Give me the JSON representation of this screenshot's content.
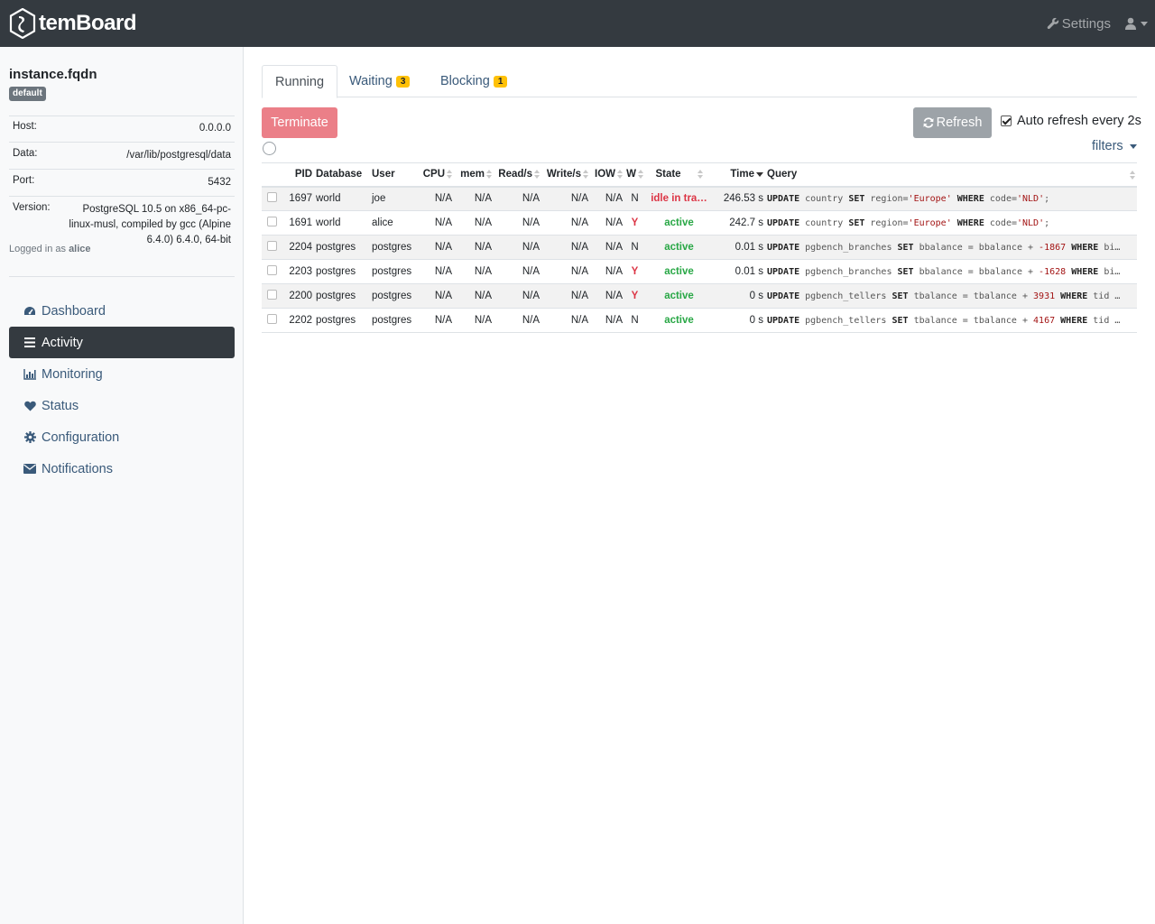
{
  "brand": {
    "name": "temBoard"
  },
  "navbar": {
    "settings_label": "Settings"
  },
  "instance": {
    "name": "instance.fqdn",
    "environment": "default",
    "info": [
      {
        "key": "Host:",
        "value": "0.0.0.0"
      },
      {
        "key": "Data:",
        "value": "/var/lib/postgresql/data"
      },
      {
        "key": "Port:",
        "value": "5432"
      },
      {
        "key": "Version:",
        "value": "PostgreSQL 10.5 on x86_64-pc-linux-musl, compiled by gcc (Alpine 6.4.0) 6.4.0, 64-bit"
      }
    ],
    "logged_prefix": "Logged in as",
    "logged_user": "alice"
  },
  "sidebar": {
    "items": [
      {
        "label": "Dashboard",
        "icon": "dashboard-icon"
      },
      {
        "label": "Activity",
        "icon": "list-icon",
        "active": true
      },
      {
        "label": "Monitoring",
        "icon": "bar-chart-icon"
      },
      {
        "label": "Status",
        "icon": "heart-icon"
      },
      {
        "label": "Configuration",
        "icon": "gear-icon"
      },
      {
        "label": "Notifications",
        "icon": "envelope-icon"
      }
    ]
  },
  "tabs": [
    {
      "label": "Running",
      "active": true
    },
    {
      "label": "Waiting",
      "count": "3"
    },
    {
      "label": "Blocking",
      "count": "1"
    }
  ],
  "toolbar": {
    "terminate_label": "Terminate",
    "refresh_label": "Refresh",
    "auto_refresh_label": "Auto refresh every 2s",
    "auto_refresh_checked": true,
    "filters_label": "filters"
  },
  "table": {
    "columns": [
      "PID",
      "Database",
      "User",
      "CPU",
      "mem",
      "Read/s",
      "Write/s",
      "IOW",
      "W",
      "State",
      "Time",
      "Query"
    ],
    "rows": [
      {
        "pid": "1697",
        "database": "world",
        "user": "joe",
        "cpu": "N/A",
        "mem": "N/A",
        "read": "N/A",
        "write": "N/A",
        "iow": "N/A",
        "w": "N",
        "state": "idle in tra…",
        "time": "246.53 s",
        "query": "UPDATE country SET region='Europe' WHERE code='NLD';"
      },
      {
        "pid": "1691",
        "database": "world",
        "user": "alice",
        "cpu": "N/A",
        "mem": "N/A",
        "read": "N/A",
        "write": "N/A",
        "iow": "N/A",
        "w": "Y",
        "state": "active",
        "time": "242.7 s",
        "query": "UPDATE country SET region='Europe' WHERE code='NLD';"
      },
      {
        "pid": "2204",
        "database": "postgres",
        "user": "postgres",
        "cpu": "N/A",
        "mem": "N/A",
        "read": "N/A",
        "write": "N/A",
        "iow": "N/A",
        "w": "N",
        "state": "active",
        "time": "0.01 s",
        "query": "UPDATE pgbench_branches SET bbalance = bbalance + -1867 WHERE bi…"
      },
      {
        "pid": "2203",
        "database": "postgres",
        "user": "postgres",
        "cpu": "N/A",
        "mem": "N/A",
        "read": "N/A",
        "write": "N/A",
        "iow": "N/A",
        "w": "Y",
        "state": "active",
        "time": "0.01 s",
        "query": "UPDATE pgbench_branches SET bbalance = bbalance + -1628 WHERE bi…"
      },
      {
        "pid": "2200",
        "database": "postgres",
        "user": "postgres",
        "cpu": "N/A",
        "mem": "N/A",
        "read": "N/A",
        "write": "N/A",
        "iow": "N/A",
        "w": "Y",
        "state": "active",
        "time": "0 s",
        "query": "UPDATE pgbench_tellers SET tbalance = tbalance + 3931 WHERE tid …"
      },
      {
        "pid": "2202",
        "database": "postgres",
        "user": "postgres",
        "cpu": "N/A",
        "mem": "N/A",
        "read": "N/A",
        "write": "N/A",
        "iow": "N/A",
        "w": "N",
        "state": "active",
        "time": "0 s",
        "query": "UPDATE pgbench_tellers SET tbalance = tbalance + 4167 WHERE tid …"
      }
    ]
  },
  "colors": {
    "navbar": "#343a40",
    "link": "#3a5a7a",
    "danger": "#dc3545",
    "success": "#28a745",
    "warning": "#ffc107"
  }
}
